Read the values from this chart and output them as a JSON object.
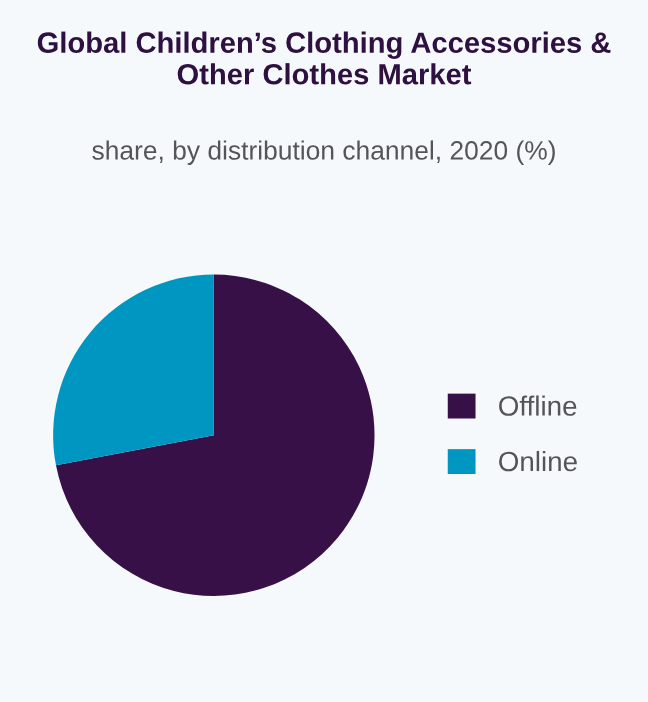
{
  "chart_data": {
    "type": "pie",
    "title": "Global Children’s Clothing Accessories & Other Clothes Market",
    "subtitle": "share, by distribution channel, 2020 (%)",
    "categories": [
      "Offline",
      "Online"
    ],
    "values": [
      72,
      28
    ],
    "colors": [
      "#361046",
      "#0096c2"
    ],
    "legend": "right"
  }
}
